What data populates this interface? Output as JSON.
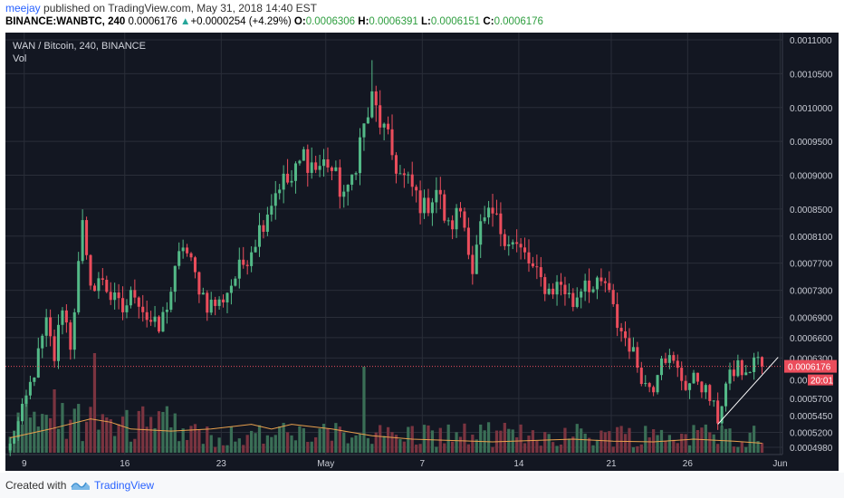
{
  "header": {
    "publisher": "meejay",
    "published_text": " published on TradingView.com, May 31, 2018 14:40 EST",
    "symbol": "BINANCE:WANBTC, 240",
    "last": "0.0006176",
    "arrow": "▲",
    "change": "+0.0000254 (+4.29%)",
    "o_label": "O:",
    "o_value": "0.0006306",
    "h_label": "H:",
    "h_value": "0.0006391",
    "l_label": "L:",
    "l_value": "0.0006151",
    "c_label": "C:",
    "c_value": "0.0006176"
  },
  "legend": {
    "title": "WAN / Bitcoin, 240, BINANCE",
    "volume": "Vol"
  },
  "footer": {
    "created": "Created with",
    "brand": "TradingView"
  },
  "colors": {
    "background": "#131722",
    "grid": "#2a2e39",
    "up": "#53b987",
    "down": "#eb4d5c",
    "vol_up": "#3a6e56",
    "vol_down": "#7a3440",
    "ma": "#e8a04d",
    "text": "#c8cbd4",
    "last_price": "#eb4d5c",
    "trendline": "#ffffff"
  },
  "chart_data": {
    "type": "candlestick",
    "title": "WAN / Bitcoin, 240, BINANCE",
    "ylim": [
      0.000495,
      0.00111
    ],
    "y_ticks": [
      "0.0011000",
      "0.0010500",
      "0.0010000",
      "0.0009500",
      "0.0009000",
      "0.0008500",
      "0.0008100",
      "0.0007700",
      "0.0007300",
      "0.0006900",
      "0.0006600",
      "0.0006300",
      "0.0006176",
      "0.0005700",
      "0.0005450",
      "0.0005200",
      "0.0004980"
    ],
    "x_ticks": [
      "9",
      "16",
      "23",
      "May",
      "7",
      "14",
      "21",
      "26",
      "Jun"
    ],
    "last_price": 0.0006176,
    "last_price_label": "0.0006176",
    "countdown": "20:01",
    "grid": true,
    "ohlc_path": [
      [
        0,
        0.0005
      ],
      [
        3,
        0.00055
      ],
      [
        6,
        0.00061
      ],
      [
        9,
        0.00068
      ],
      [
        11,
        0.00063
      ],
      [
        13,
        0.00071
      ],
      [
        15,
        0.00065
      ],
      [
        18,
        0.00082
      ],
      [
        19,
        0.00077
      ],
      [
        21,
        0.00073
      ],
      [
        23,
        0.00075
      ],
      [
        25,
        0.00072
      ],
      [
        28,
        0.0007
      ],
      [
        31,
        0.00073
      ],
      [
        34,
        0.00069
      ],
      [
        37,
        0.00067
      ],
      [
        40,
        0.00073
      ],
      [
        43,
        0.0008
      ],
      [
        46,
        0.00075
      ],
      [
        49,
        0.00071
      ],
      [
        52,
        0.00071
      ],
      [
        55,
        0.00074
      ],
      [
        58,
        0.00077
      ],
      [
        62,
        0.00082
      ],
      [
        64,
        0.00085
      ],
      [
        67,
        0.00089
      ],
      [
        70,
        0.00089
      ],
      [
        73,
        0.00093
      ],
      [
        76,
        0.00091
      ],
      [
        79,
        0.00092
      ],
      [
        82,
        0.00088
      ],
      [
        84,
        0.00087
      ],
      [
        87,
        0.00095
      ],
      [
        90,
        0.00101
      ],
      [
        92,
        0.00098
      ],
      [
        95,
        0.00093
      ],
      [
        97,
        0.0009
      ],
      [
        100,
        0.00088
      ],
      [
        103,
        0.00085
      ],
      [
        106,
        0.00088
      ],
      [
        109,
        0.00082
      ],
      [
        112,
        0.00085
      ],
      [
        114,
        0.0008
      ],
      [
        115,
        0.00076
      ],
      [
        117,
        0.00082
      ],
      [
        120,
        0.00084
      ],
      [
        122,
        0.00082
      ],
      [
        125,
        0.0008
      ],
      [
        128,
        0.00078
      ],
      [
        131,
        0.00075
      ],
      [
        134,
        0.00073
      ],
      [
        137,
        0.00074
      ],
      [
        140,
        0.00071
      ],
      [
        143,
        0.00075
      ],
      [
        145,
        0.00073
      ],
      [
        148,
        0.00074
      ],
      [
        151,
        0.00068
      ],
      [
        154,
        0.00065
      ],
      [
        156,
        0.00062
      ],
      [
        158,
        0.00059
      ],
      [
        160,
        0.00059
      ],
      [
        162,
        0.00064
      ],
      [
        165,
        0.00062
      ],
      [
        168,
        0.00059
      ],
      [
        171,
        0.0006
      ],
      [
        174,
        0.00057
      ],
      [
        176,
        0.00054
      ],
      [
        178,
        0.00059
      ],
      [
        181,
        0.00062
      ],
      [
        183,
        0.0006
      ],
      [
        185,
        0.00063
      ],
      [
        187,
        0.00062
      ]
    ],
    "n_candles": 188,
    "candle_high_max": 0.00107,
    "candle_high_max_index": 90,
    "ma_path": [
      [
        0,
        0.000512
      ],
      [
        10,
        0.000525
      ],
      [
        20,
        0.00054
      ],
      [
        25,
        0.000535
      ],
      [
        30,
        0.000525
      ],
      [
        40,
        0.000522
      ],
      [
        50,
        0.000525
      ],
      [
        60,
        0.000532
      ],
      [
        65,
        0.000525
      ],
      [
        70,
        0.000532
      ],
      [
        80,
        0.000525
      ],
      [
        90,
        0.000515
      ],
      [
        100,
        0.00051
      ],
      [
        110,
        0.000508
      ],
      [
        120,
        0.000506
      ],
      [
        130,
        0.000508
      ],
      [
        140,
        0.00051
      ],
      [
        150,
        0.000507
      ],
      [
        160,
        0.000506
      ],
      [
        170,
        0.00051
      ],
      [
        180,
        0.000507
      ],
      [
        187,
        0.000504
      ]
    ],
    "trendline": {
      "x1": 176.5,
      "y1": 0.000532,
      "x2": 191.5,
      "y2": 0.000631
    }
  }
}
